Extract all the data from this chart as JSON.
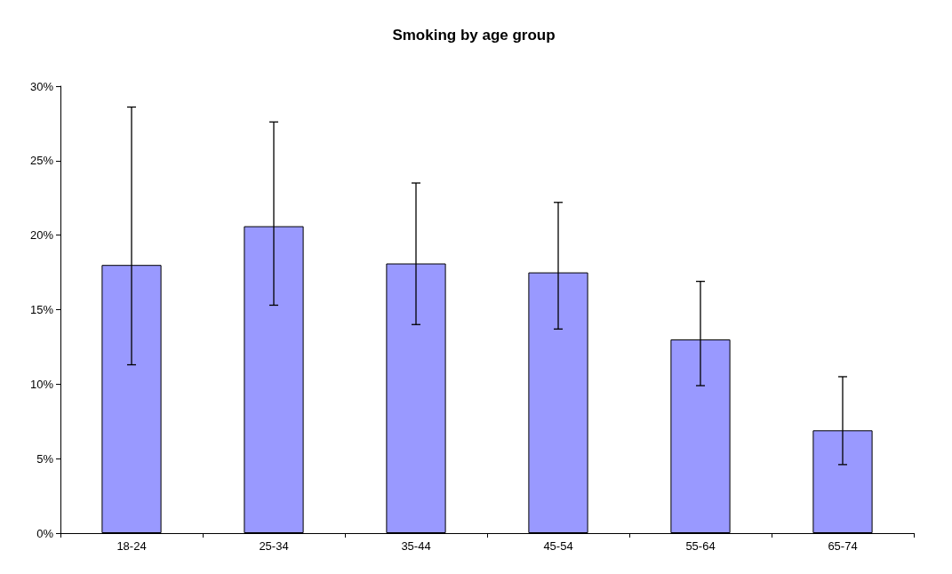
{
  "chart_data": {
    "type": "bar",
    "title": "Smoking by age group",
    "categories": [
      "18-24",
      "25-34",
      "35-44",
      "45-54",
      "55-64",
      "65-74"
    ],
    "values": [
      18.0,
      20.6,
      18.1,
      17.5,
      13.0,
      6.9
    ],
    "errors": [
      [
        11.3,
        28.6
      ],
      [
        15.3,
        27.6
      ],
      [
        14.0,
        23.5
      ],
      [
        13.7,
        22.2
      ],
      [
        9.9,
        16.9
      ],
      [
        4.6,
        10.5
      ]
    ],
    "color": "#9999ff",
    "ylim": [
      0,
      30
    ],
    "yticks": [
      {
        "value": 0,
        "label": "0%"
      },
      {
        "value": 5,
        "label": "5%"
      },
      {
        "value": 10,
        "label": "10%"
      },
      {
        "value": 15,
        "label": "15%"
      },
      {
        "value": 20,
        "label": "20%"
      },
      {
        "value": 25,
        "label": "25%"
      },
      {
        "value": 30,
        "label": "30%"
      }
    ],
    "grid": false
  }
}
